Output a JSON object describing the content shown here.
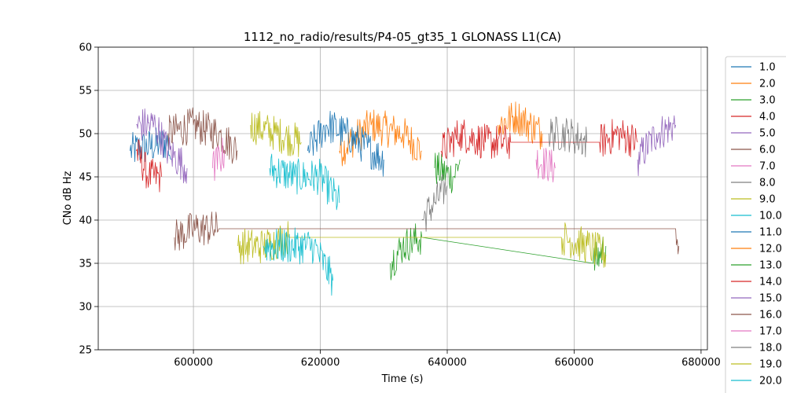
{
  "chart_data": {
    "type": "line",
    "title": "1112_no_radio/results/P4-05_gt35_1 GLONASS L1(CA)",
    "xlabel": "Time (s)",
    "ylabel": "CNo dB Hz",
    "xlim": [
      585000,
      681000
    ],
    "ylim": [
      25,
      60
    ],
    "xticks": [
      600000,
      620000,
      640000,
      660000,
      680000
    ],
    "xtick_labels": [
      "600000",
      "620000",
      "640000",
      "660000",
      "680000"
    ],
    "yticks": [
      25,
      30,
      35,
      40,
      45,
      50,
      55,
      60
    ],
    "ytick_labels": [
      "25",
      "30",
      "35",
      "40",
      "45",
      "50",
      "55",
      "60"
    ],
    "grid": true,
    "legend_position": "outside-right",
    "series": [
      {
        "name": "1.0",
        "color": "#1f77b4",
        "points": [
          [
            590000,
            48
          ],
          [
            596000,
            49
          ],
          [
            596500,
            47
          ]
        ]
      },
      {
        "name": "2.0",
        "color": "#ff7f0e",
        "points": [
          [
            623000,
            48
          ],
          [
            628000,
            51
          ],
          [
            633000,
            50
          ],
          [
            636000,
            48
          ]
        ]
      },
      {
        "name": "3.0",
        "color": "#2ca02c",
        "points": [
          [
            638000,
            46
          ],
          [
            641000,
            45
          ],
          [
            642000,
            47
          ]
        ]
      },
      {
        "name": "4.0",
        "color": "#d62728",
        "points": [
          [
            591000,
            48
          ],
          [
            593000,
            45
          ],
          [
            595000,
            45
          ]
        ]
      },
      {
        "name": "5.0",
        "color": "#9467bd",
        "points": [
          [
            670000,
            47
          ],
          [
            673000,
            50
          ],
          [
            676000,
            51
          ]
        ]
      },
      {
        "name": "6.0",
        "color": "#8c564b",
        "points": [
          [
            596000,
            50
          ],
          [
            600000,
            51
          ],
          [
            604000,
            50
          ],
          [
            607000,
            48
          ]
        ]
      },
      {
        "name": "7.0",
        "color": "#e377c2",
        "points": [
          [
            654000,
            47
          ],
          [
            657000,
            46
          ]
        ]
      },
      {
        "name": "8.0",
        "color": "#7f7f7f",
        "points": [
          [
            636000,
            40
          ],
          [
            638000,
            42
          ],
          [
            640000,
            44
          ]
        ]
      },
      {
        "name": "9.0",
        "color": "#bcbd22",
        "points": [
          [
            609000,
            51
          ],
          [
            613000,
            50
          ],
          [
            617000,
            49
          ]
        ]
      },
      {
        "name": "10.0",
        "color": "#17becf",
        "points": [
          [
            612000,
            46
          ],
          [
            616000,
            45
          ],
          [
            620000,
            45
          ],
          [
            623000,
            42
          ]
        ]
      },
      {
        "name": "11.0",
        "color": "#1f77b4",
        "points": [
          [
            618000,
            48
          ],
          [
            621000,
            51
          ],
          [
            624000,
            50
          ],
          [
            630000,
            47
          ]
        ]
      },
      {
        "name": "12.0",
        "color": "#ff7f0e",
        "points": [
          [
            648000,
            51
          ],
          [
            651000,
            52
          ],
          [
            655000,
            50
          ]
        ]
      },
      {
        "name": "13.0",
        "color": "#2ca02c",
        "points": [
          [
            631000,
            35
          ],
          [
            633000,
            37
          ],
          [
            636000,
            38
          ],
          [
            663000,
            35
          ],
          [
            665000,
            37
          ]
        ]
      },
      {
        "name": "14.0",
        "color": "#d62728",
        "points": [
          [
            639000,
            48
          ],
          [
            642000,
            50
          ],
          [
            646000,
            49
          ],
          [
            650000,
            49
          ],
          [
            664000,
            49
          ],
          [
            667000,
            50
          ],
          [
            670000,
            49
          ]
        ]
      },
      {
        "name": "15.0",
        "color": "#9467bd",
        "points": [
          [
            591000,
            51
          ],
          [
            594000,
            51
          ],
          [
            596000,
            48
          ],
          [
            599000,
            46
          ]
        ]
      },
      {
        "name": "16.0",
        "color": "#8c564b",
        "points": [
          [
            597000,
            38
          ],
          [
            600000,
            39
          ],
          [
            604000,
            39
          ],
          [
            676000,
            39
          ],
          [
            676500,
            37
          ]
        ]
      },
      {
        "name": "17.0",
        "color": "#e377c2",
        "points": [
          [
            603000,
            46
          ],
          [
            605000,
            48
          ]
        ]
      },
      {
        "name": "18.0",
        "color": "#7f7f7f",
        "points": [
          [
            656000,
            50
          ],
          [
            659000,
            50
          ],
          [
            662000,
            49
          ]
        ]
      },
      {
        "name": "19.0",
        "color": "#bcbd22",
        "points": [
          [
            607000,
            37
          ],
          [
            611000,
            37
          ],
          [
            615000,
            38
          ],
          [
            658000,
            38
          ],
          [
            662000,
            37
          ],
          [
            665000,
            36
          ]
        ]
      },
      {
        "name": "20.0",
        "color": "#17becf",
        "points": [
          [
            611000,
            37
          ],
          [
            615000,
            37
          ],
          [
            619000,
            37
          ],
          [
            622000,
            33
          ]
        ]
      }
    ]
  }
}
